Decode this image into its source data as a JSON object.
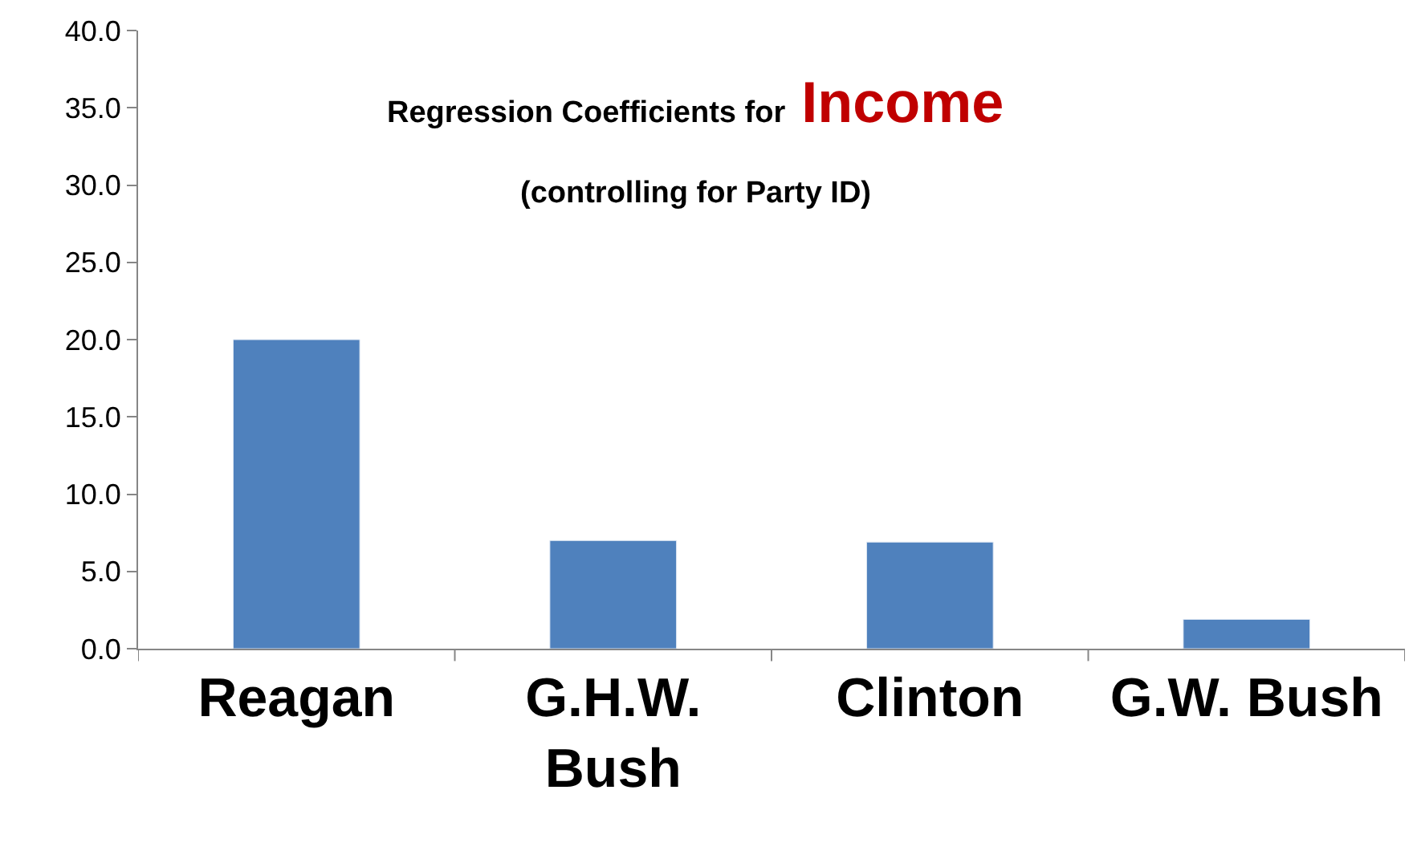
{
  "chart_data": {
    "type": "bar",
    "title": "Regression Coefficients for Income",
    "subtitle": "(controlling for Party ID)",
    "categories": [
      "Reagan",
      "G.H.W. Bush",
      "Clinton",
      "G.W. Bush"
    ],
    "values": [
      20.0,
      7.0,
      6.9,
      1.9
    ],
    "color": "#4f81bd",
    "ylim": [
      0,
      40
    ],
    "yticks": [
      {
        "value": 0,
        "label": "0.0"
      },
      {
        "value": 5,
        "label": "5.0"
      },
      {
        "value": 10,
        "label": "10.0"
      },
      {
        "value": 15,
        "label": "15.0"
      },
      {
        "value": 20,
        "label": "20.0"
      },
      {
        "value": 25,
        "label": "25.0"
      },
      {
        "value": 30,
        "label": "30.0"
      },
      {
        "value": 35,
        "label": "35.0"
      },
      {
        "value": 40,
        "label": "40.0"
      }
    ]
  }
}
